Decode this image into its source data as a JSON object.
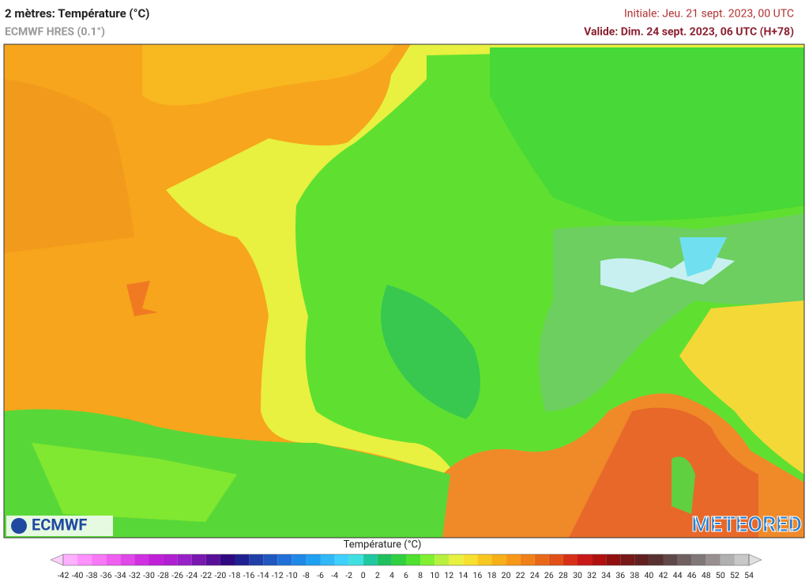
{
  "header": {
    "title": "2 mètres: Température (°C)",
    "model": "ECMWF HRES (0.1°)",
    "initial": "Initiale: Jeu. 21 sept. 2023, 00 UTC",
    "valid": "Valide: Dim. 24 sept. 2023, 06 UTC (H+78)"
  },
  "logos": {
    "left": "ECMWF",
    "right": "METEORED"
  },
  "legend": {
    "title": "Température (°C)",
    "ticks": [
      -42,
      -40,
      -38,
      -36,
      -34,
      -32,
      -30,
      -28,
      -26,
      -24,
      -22,
      -20,
      -18,
      -16,
      -14,
      -12,
      -10,
      -8,
      -6,
      -4,
      -2,
      0,
      2,
      4,
      6,
      8,
      10,
      12,
      14,
      16,
      18,
      20,
      22,
      24,
      26,
      28,
      30,
      32,
      34,
      36,
      38,
      40,
      42,
      44,
      46,
      48,
      50,
      52,
      54
    ],
    "colors": [
      "#f8d0f8",
      "#ffb0ff",
      "#ff90ff",
      "#f878f8",
      "#f060f0",
      "#e048e8",
      "#d030e0",
      "#c020d8",
      "#b020d0",
      "#9820c8",
      "#7818b0",
      "#581098",
      "#300880",
      "#202090",
      "#2040a8",
      "#2058c0",
      "#2070d8",
      "#2088e8",
      "#20a0f0",
      "#30b8f8",
      "#40d0ff",
      "#40e0e0",
      "#20c8a0",
      "#20c060",
      "#30d040",
      "#50e030",
      "#80f030",
      "#b8f040",
      "#e8f040",
      "#f8e030",
      "#f8c820",
      "#f8b018",
      "#f89818",
      "#f08018",
      "#e86818",
      "#e05018",
      "#d83018",
      "#c81818",
      "#b01010",
      "#901010",
      "#781818",
      "#602020",
      "#583030",
      "#604848",
      "#706060",
      "#807878",
      "#989090",
      "#b0b0b0",
      "#c8c8c8",
      "#e0e0e0"
    ]
  }
}
